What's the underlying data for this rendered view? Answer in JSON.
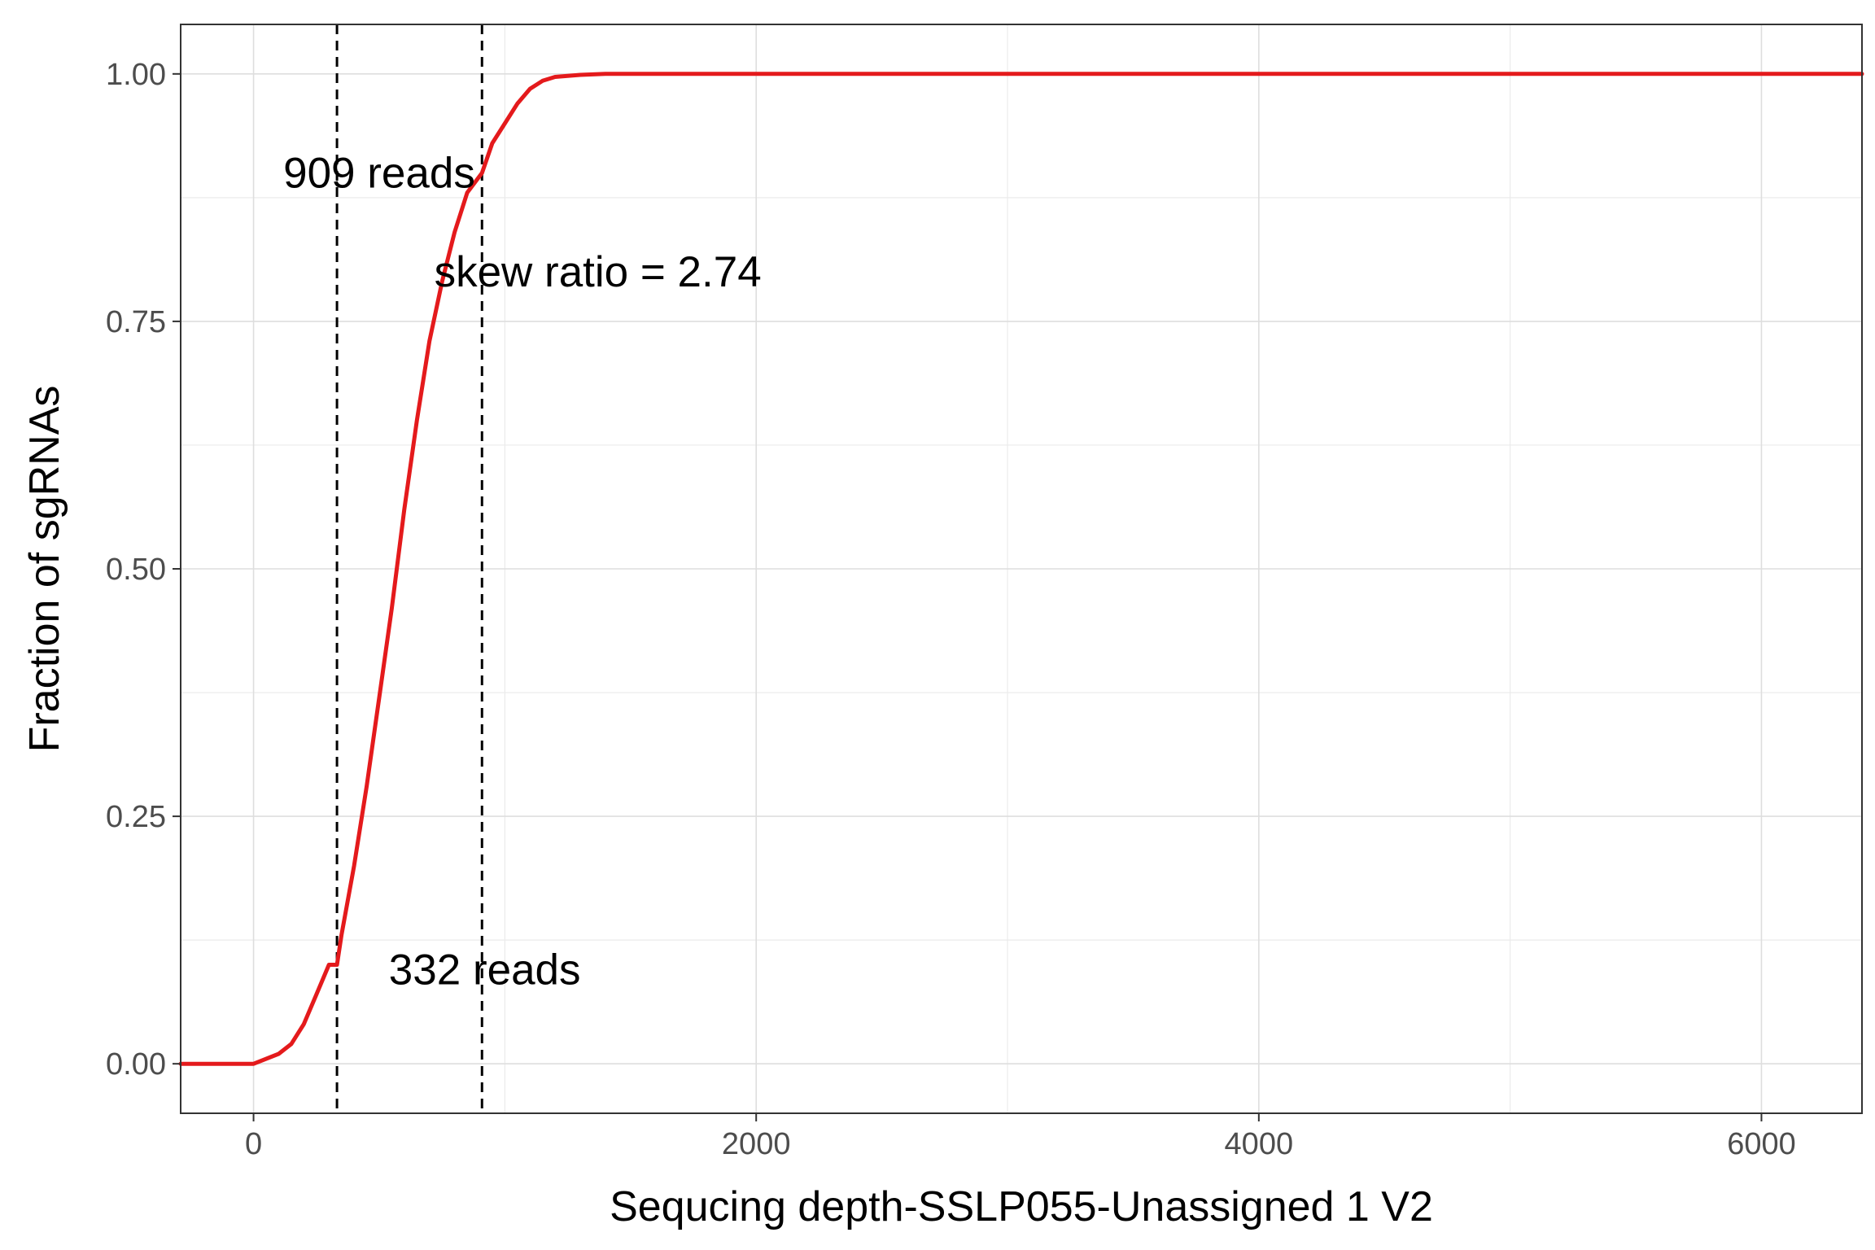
{
  "chart_data": {
    "type": "line",
    "title": "",
    "xlabel": "Sequcing depth-SSLP055-Unassigned 1 V2",
    "ylabel": "Fraction of sgRNAs",
    "xlim": [
      -290,
      6400
    ],
    "ylim": [
      -0.05,
      1.05
    ],
    "x_ticks": [
      0,
      2000,
      4000,
      6000
    ],
    "x_tick_labels": [
      "0",
      "2000",
      "4000",
      "6000"
    ],
    "y_ticks": [
      0,
      0.25,
      0.5,
      0.75,
      1.0
    ],
    "y_tick_labels": [
      "0.00",
      "0.25",
      "0.50",
      "0.75",
      "1.00"
    ],
    "grid": true,
    "series": [
      {
        "color": "#e41a1c",
        "x": [
          -290,
          0,
          100,
          150,
          200,
          250,
          300,
          332,
          350,
          400,
          450,
          500,
          550,
          600,
          650,
          700,
          750,
          800,
          850,
          909,
          950,
          1000,
          1050,
          1100,
          1150,
          1200,
          1300,
          1400,
          1500,
          1750,
          2000,
          4000,
          6400
        ],
        "y": [
          0.0,
          0.0,
          0.01,
          0.02,
          0.04,
          0.07,
          0.1,
          0.1,
          0.13,
          0.2,
          0.28,
          0.37,
          0.46,
          0.56,
          0.65,
          0.73,
          0.79,
          0.84,
          0.88,
          0.9,
          0.93,
          0.95,
          0.97,
          0.985,
          0.993,
          0.997,
          0.999,
          1.0,
          1.0,
          1.0,
          1.0,
          1.0,
          1.0
        ]
      }
    ],
    "vlines": [
      {
        "x": 332,
        "style": "dashed",
        "color": "#000000"
      },
      {
        "x": 909,
        "style": "dashed",
        "color": "#000000"
      }
    ],
    "annotations": [
      {
        "text": "909 reads",
        "x": 500,
        "y": 0.9
      },
      {
        "text": "skew ratio = 2.74",
        "x": 1370,
        "y": 0.8
      },
      {
        "text": "332 reads",
        "x": 920,
        "y": 0.095
      }
    ]
  }
}
